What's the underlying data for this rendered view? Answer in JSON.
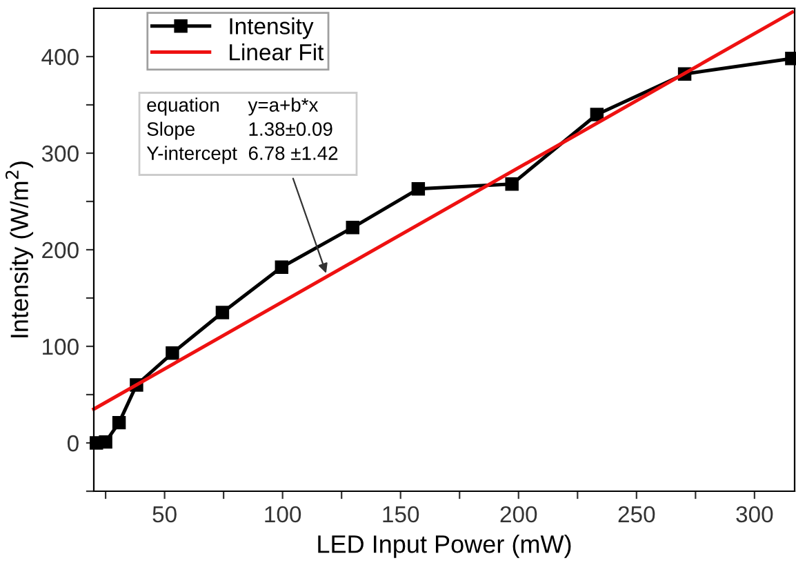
{
  "chart_data": {
    "type": "line",
    "xlabel": "LED Input Power (mW)",
    "ylabel": "Intensity (W/m$^{2}$)",
    "series": [
      {
        "name": "Intensity",
        "color": "#000000",
        "marker": "square",
        "x": [
          21.1,
          25,
          30.7,
          38.1,
          53.3,
          74.5,
          99.6,
          129.7,
          157.5,
          197.2,
          233.2,
          270.4,
          315.8
        ],
        "values": [
          0,
          1,
          21,
          60,
          93,
          135,
          182,
          223,
          263,
          268,
          340,
          382,
          398
        ]
      },
      {
        "name": "Linear Fit",
        "color": "#ee1111",
        "marker": "none",
        "x": [
          20,
          316
        ],
        "values": [
          35,
          446
        ]
      }
    ],
    "xlim": [
      20,
      317
    ],
    "ylim": [
      -50,
      450
    ],
    "xticks": [
      {
        "value": 25,
        "label": null
      },
      50,
      {
        "value": 75,
        "label": null
      },
      100,
      {
        "value": 125,
        "label": null
      },
      150,
      {
        "value": 175,
        "label": null
      },
      200,
      {
        "value": 225,
        "label": null
      },
      250,
      {
        "value": 275,
        "label": null
      },
      300
    ],
    "yticks": [
      {
        "value": -50,
        "label": null
      },
      0,
      {
        "value": 50,
        "label": null
      },
      100,
      {
        "value": 150,
        "label": null
      },
      200,
      {
        "value": 250,
        "label": null
      },
      300,
      {
        "value": 350,
        "label": null
      },
      400
    ],
    "annotations": [
      "equation",
      "y=a+b*x",
      "Slope",
      "1.38±0.09",
      "Y-intercept",
      {
        "text": "6.78 ±1.42",
        "x": 119,
        "y": 172
      }
    ],
    "grid": false,
    "legend": "top left",
    "line_style": "solid"
  }
}
